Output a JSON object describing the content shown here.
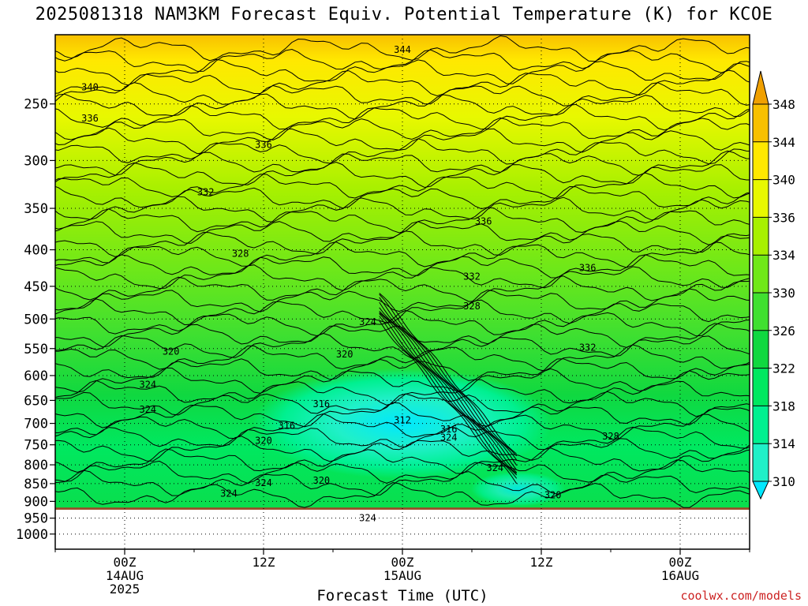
{
  "chart_data": {
    "type": "heatmap",
    "title": "2025081318 NAM3KM Forecast Equiv. Potential Temperature (K) for KCOE",
    "xlabel": "Forecast Time (UTC)",
    "ylabel": "",
    "y_scale": "log",
    "y_inverted": true,
    "ylim": [
      1050,
      200
    ],
    "y_ticks": [
      250,
      300,
      350,
      400,
      450,
      500,
      550,
      600,
      650,
      700,
      750,
      800,
      850,
      900,
      950,
      1000
    ],
    "x_ticks": [
      {
        "label": "00Z",
        "sub": [
          "14AUG",
          "2025"
        ]
      },
      {
        "label": "12Z",
        "sub": []
      },
      {
        "label": "00Z",
        "sub": [
          "15AUG"
        ]
      },
      {
        "label": "12Z",
        "sub": []
      },
      {
        "label": "00Z",
        "sub": [
          "16AUG"
        ]
      }
    ],
    "grid": true,
    "colorbar": {
      "levels": [
        310,
        314,
        318,
        322,
        326,
        330,
        334,
        336,
        340,
        344,
        348
      ],
      "colors": [
        "#00e8ff",
        "#20f0c8",
        "#00f090",
        "#00e860",
        "#10d840",
        "#40e030",
        "#70e818",
        "#a8f000",
        "#e8f800",
        "#ffe800",
        "#f8c000",
        "#f0a000"
      ]
    },
    "surface_label": "below ground",
    "surface_color": "#9a4e2c",
    "contour_labels": [
      {
        "text": "344",
        "t": 24,
        "p": 210
      },
      {
        "text": "340",
        "t": -3,
        "p": 237
      },
      {
        "text": "336",
        "t": -3,
        "p": 262
      },
      {
        "text": "336",
        "t": 12,
        "p": 285
      },
      {
        "text": "332",
        "t": 7,
        "p": 332
      },
      {
        "text": "336",
        "t": 31,
        "p": 365
      },
      {
        "text": "328",
        "t": 10,
        "p": 405
      },
      {
        "text": "336",
        "t": 40,
        "p": 424
      },
      {
        "text": "332",
        "t": 30,
        "p": 436
      },
      {
        "text": "328",
        "t": 30,
        "p": 480
      },
      {
        "text": "324",
        "t": 21,
        "p": 505
      },
      {
        "text": "320",
        "t": 4,
        "p": 555
      },
      {
        "text": "320",
        "t": 19,
        "p": 560
      },
      {
        "text": "332",
        "t": 40,
        "p": 548
      },
      {
        "text": "324",
        "t": 2,
        "p": 618
      },
      {
        "text": "316",
        "t": 17,
        "p": 658
      },
      {
        "text": "324",
        "t": 2,
        "p": 669
      },
      {
        "text": "312",
        "t": 24,
        "p": 693
      },
      {
        "text": "316",
        "t": 14,
        "p": 705
      },
      {
        "text": "316",
        "t": 28,
        "p": 713
      },
      {
        "text": "324",
        "t": 28,
        "p": 733
      },
      {
        "text": "320",
        "t": 12,
        "p": 740
      },
      {
        "text": "328",
        "t": 42,
        "p": 730
      },
      {
        "text": "324",
        "t": 32,
        "p": 808
      },
      {
        "text": "324",
        "t": 12,
        "p": 848
      },
      {
        "text": "320",
        "t": 17,
        "p": 842
      },
      {
        "text": "324",
        "t": 9,
        "p": 878
      },
      {
        "text": "320",
        "t": 37,
        "p": 882
      },
      {
        "text": "324",
        "t": 21,
        "p": 950
      }
    ]
  },
  "watermark": "coolwx.com/models"
}
